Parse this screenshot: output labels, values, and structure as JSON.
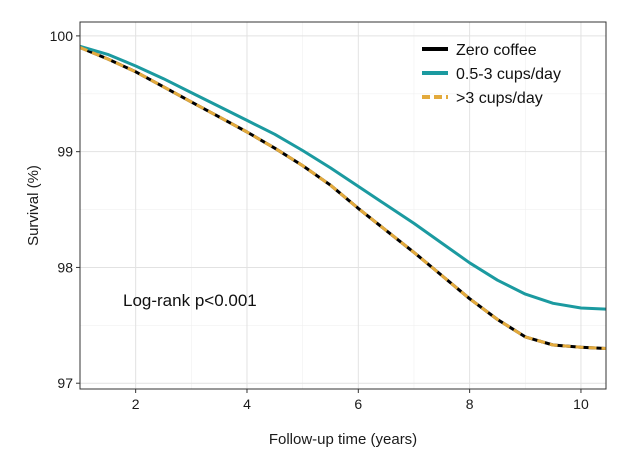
{
  "chart_data": {
    "type": "line",
    "xlabel": "Follow-up time (years)",
    "ylabel": "Survival (%)",
    "xlim": [
      1.0,
      10.45
    ],
    "ylim": [
      96.95,
      100.12
    ],
    "x_ticks": [
      2,
      4,
      6,
      8,
      10
    ],
    "y_ticks": [
      97,
      98,
      99,
      100
    ],
    "grid": true,
    "legend_position": "top-right",
    "annotation": "Log-rank p<0.001",
    "series": [
      {
        "name": "Zero coffee",
        "color": "#000000",
        "style": "solid",
        "x": [
          1.0,
          1.5,
          2.0,
          2.5,
          3.0,
          3.5,
          4.0,
          4.5,
          5.0,
          5.5,
          6.0,
          6.5,
          7.0,
          7.5,
          8.0,
          8.5,
          9.0,
          9.5,
          10.0,
          10.45
        ],
        "y": [
          99.9,
          99.8,
          99.69,
          99.56,
          99.43,
          99.3,
          99.17,
          99.03,
          98.88,
          98.71,
          98.51,
          98.32,
          98.13,
          97.93,
          97.73,
          97.55,
          97.4,
          97.33,
          97.31,
          97.3
        ]
      },
      {
        "name": "0.5-3 cups/day",
        "color": "#1b9aa0",
        "style": "solid",
        "x": [
          1.0,
          1.5,
          2.0,
          2.5,
          3.0,
          3.5,
          4.0,
          4.5,
          5.0,
          5.5,
          6.0,
          6.5,
          7.0,
          7.5,
          8.0,
          8.5,
          9.0,
          9.5,
          10.0,
          10.45
        ],
        "y": [
          99.91,
          99.84,
          99.74,
          99.63,
          99.51,
          99.39,
          99.27,
          99.15,
          99.01,
          98.86,
          98.7,
          98.54,
          98.38,
          98.21,
          98.04,
          97.89,
          97.77,
          97.69,
          97.65,
          97.64
        ]
      },
      {
        "name": ">3 cups/day",
        "color": "#e3aa3c",
        "style": "dashed",
        "x": [
          1.0,
          1.5,
          2.0,
          2.5,
          3.0,
          3.5,
          4.0,
          4.5,
          5.0,
          5.5,
          6.0,
          6.5,
          7.0,
          7.5,
          8.0,
          8.5,
          9.0,
          9.5,
          10.0,
          10.45
        ],
        "y": [
          99.9,
          99.8,
          99.69,
          99.56,
          99.43,
          99.3,
          99.17,
          99.03,
          98.88,
          98.71,
          98.51,
          98.32,
          98.13,
          97.93,
          97.73,
          97.55,
          97.4,
          97.33,
          97.31,
          97.3
        ]
      }
    ]
  }
}
